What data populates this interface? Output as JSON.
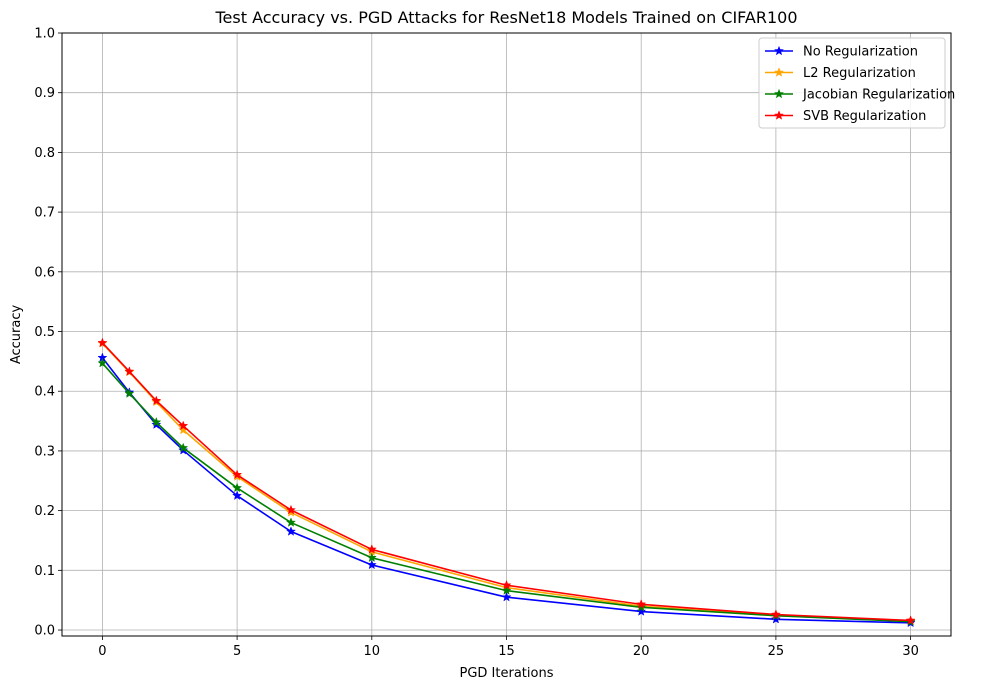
{
  "chart_data": {
    "type": "line",
    "title": "Test Accuracy vs. PGD Attacks for ResNet18 Models Trained on CIFAR100",
    "xlabel": "PGD Iterations",
    "ylabel": "Accuracy",
    "xlim": [
      -1.5,
      31.5
    ],
    "ylim": [
      -0.01,
      1.0
    ],
    "xticks": [
      0,
      5,
      10,
      15,
      20,
      25,
      30
    ],
    "xtick_labels": [
      "0",
      "5",
      "10",
      "15",
      "20",
      "25",
      "30"
    ],
    "yticks": [
      0.0,
      0.1,
      0.2,
      0.3,
      0.4,
      0.5,
      0.6,
      0.7,
      0.8,
      0.9,
      1.0
    ],
    "ytick_labels": [
      "0.0",
      "0.1",
      "0.2",
      "0.3",
      "0.4",
      "0.5",
      "0.6",
      "0.7",
      "0.8",
      "0.9",
      "1.0"
    ],
    "grid": true,
    "legend_position": "top-right",
    "x": [
      0,
      1,
      2,
      3,
      5,
      7,
      10,
      15,
      20,
      25,
      30
    ],
    "series": [
      {
        "name": "No Regularization",
        "color": "#0000ff",
        "marker": "star",
        "values": [
          0.456,
          0.398,
          0.344,
          0.301,
          0.225,
          0.165,
          0.109,
          0.055,
          0.031,
          0.018,
          0.012
        ]
      },
      {
        "name": "L2 Regularization",
        "color": "#ffa500",
        "marker": "star",
        "values": [
          0.48,
          0.432,
          0.382,
          0.335,
          0.257,
          0.197,
          0.131,
          0.071,
          0.04,
          0.024,
          0.015
        ]
      },
      {
        "name": "Jacobian Regularization",
        "color": "#008000",
        "marker": "star",
        "values": [
          0.447,
          0.396,
          0.348,
          0.305,
          0.238,
          0.18,
          0.121,
          0.066,
          0.038,
          0.024,
          0.014
        ]
      },
      {
        "name": "SVB Regularization",
        "color": "#ff0000",
        "marker": "star",
        "values": [
          0.481,
          0.433,
          0.384,
          0.342,
          0.26,
          0.201,
          0.135,
          0.075,
          0.043,
          0.026,
          0.016
        ]
      }
    ]
  }
}
